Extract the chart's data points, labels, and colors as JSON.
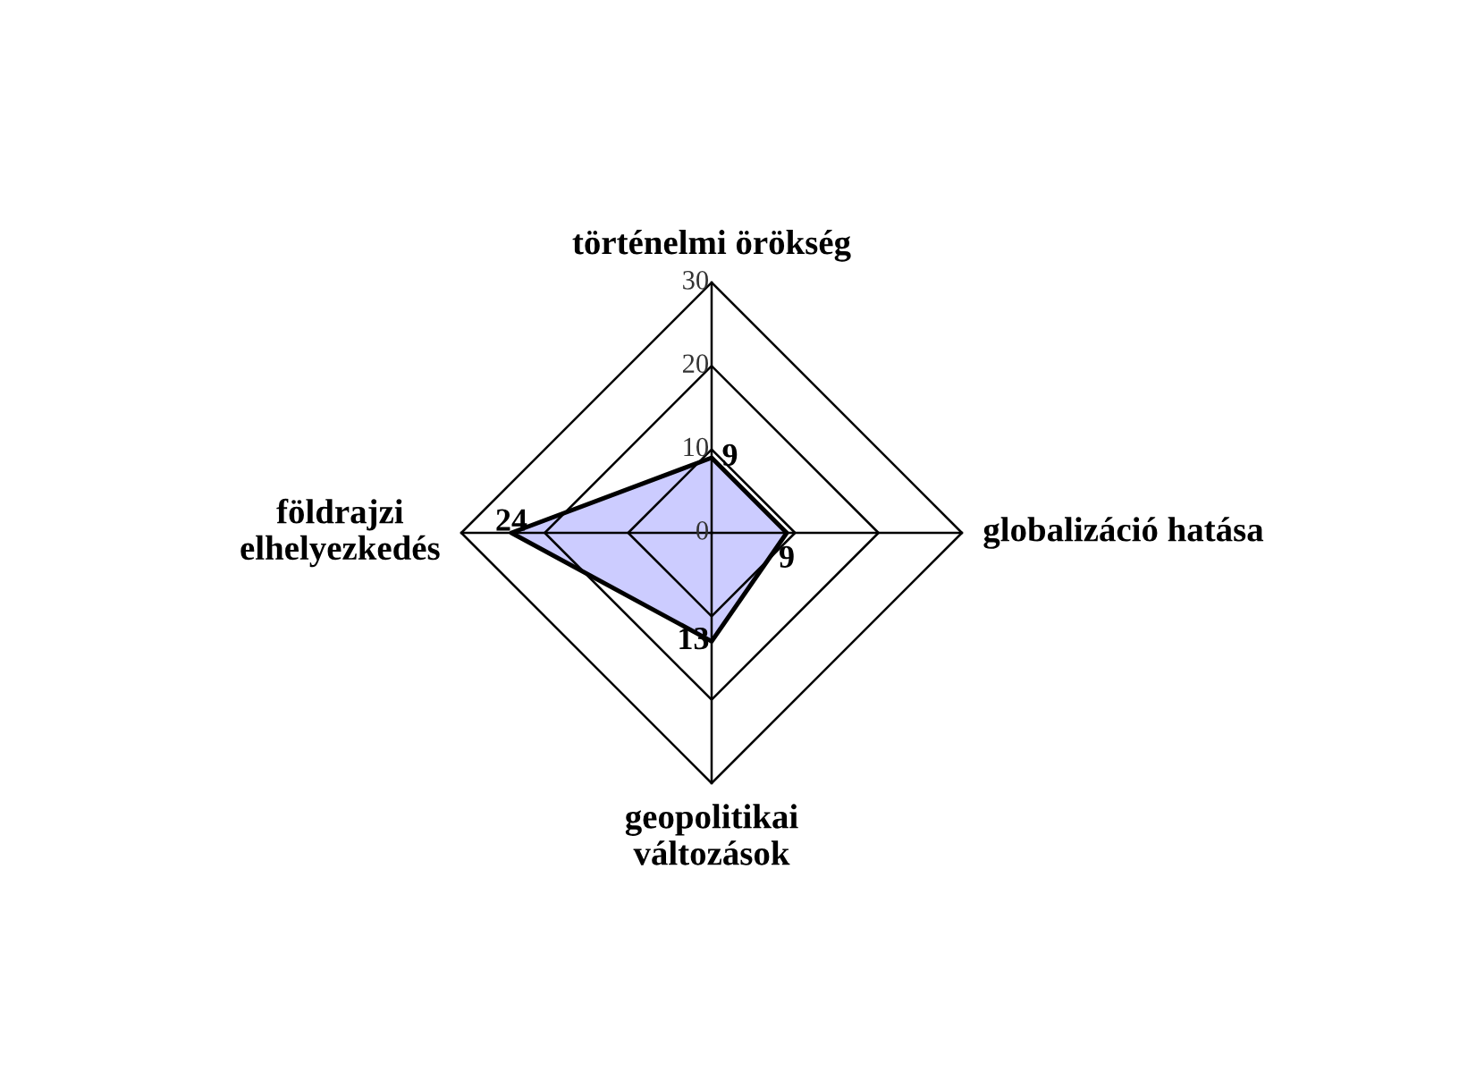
{
  "chart_data": {
    "type": "radar",
    "categories": [
      "történelmi örökség",
      "globalizáció hatása",
      "geopolitikai\nváltozások",
      "földrajzi\nelhelyezkedés"
    ],
    "series": [
      {
        "color": "#ccccff",
        "values": [
          9,
          9,
          13,
          24
        ]
      }
    ],
    "ylim": [
      0,
      30
    ],
    "yticks": [
      0,
      10,
      20,
      30
    ],
    "grid": true,
    "data_labels": true
  }
}
